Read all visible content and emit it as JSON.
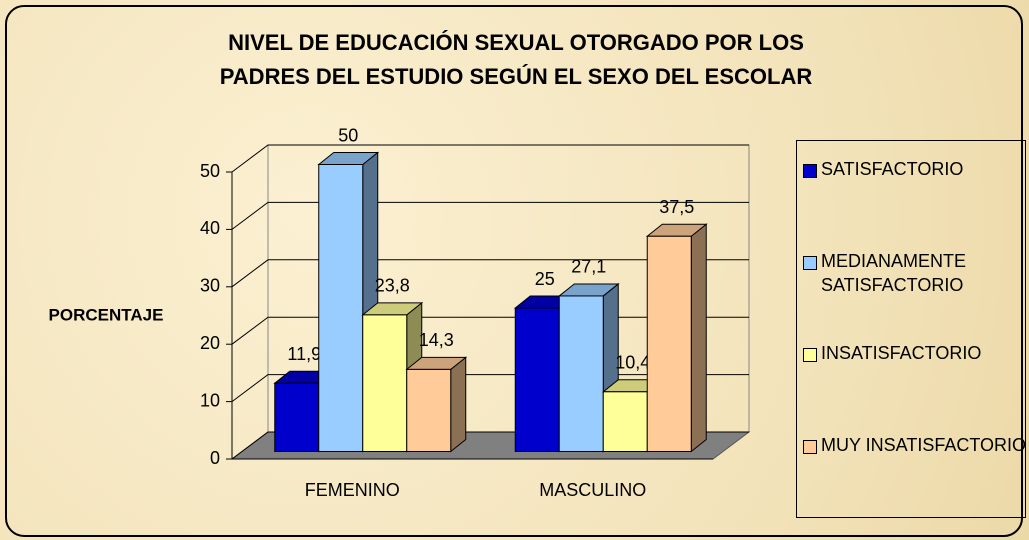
{
  "chart_data": {
    "type": "bar3d",
    "title": [
      "NIVEL DE EDUCACIÓN SEXUAL OTORGADO POR LOS",
      "PADRES DEL ESTUDIO SEGÚN EL SEXO DEL ESCOLAR"
    ],
    "y_label": "PORCENTAJE",
    "categories": [
      "FEMENINO",
      "MASCULINO"
    ],
    "series": [
      {
        "name": "SATISFACTORIO",
        "color": "#0000cc",
        "values": [
          11.9,
          25
        ],
        "value_labels": [
          "11,9",
          "25"
        ]
      },
      {
        "name": "MEDIANAMENTE SATISFACTORIO",
        "color": "#99ccff",
        "values": [
          50,
          27.1
        ],
        "value_labels": [
          "50",
          "27,1"
        ]
      },
      {
        "name": "INSATISFACTORIO",
        "color": "#ffff99",
        "values": [
          23.8,
          10.4
        ],
        "value_labels": [
          "23,8",
          "10,4"
        ]
      },
      {
        "name": "MUY INSATISFACTORIO",
        "color": "#ffcc99",
        "values": [
          14.3,
          37.5
        ],
        "value_labels": [
          "14,3",
          "37,5"
        ]
      }
    ],
    "ylim": [
      0,
      50
    ],
    "yticks": [
      0,
      10,
      20,
      30,
      40,
      50
    ],
    "grid": true,
    "legend": "right"
  }
}
